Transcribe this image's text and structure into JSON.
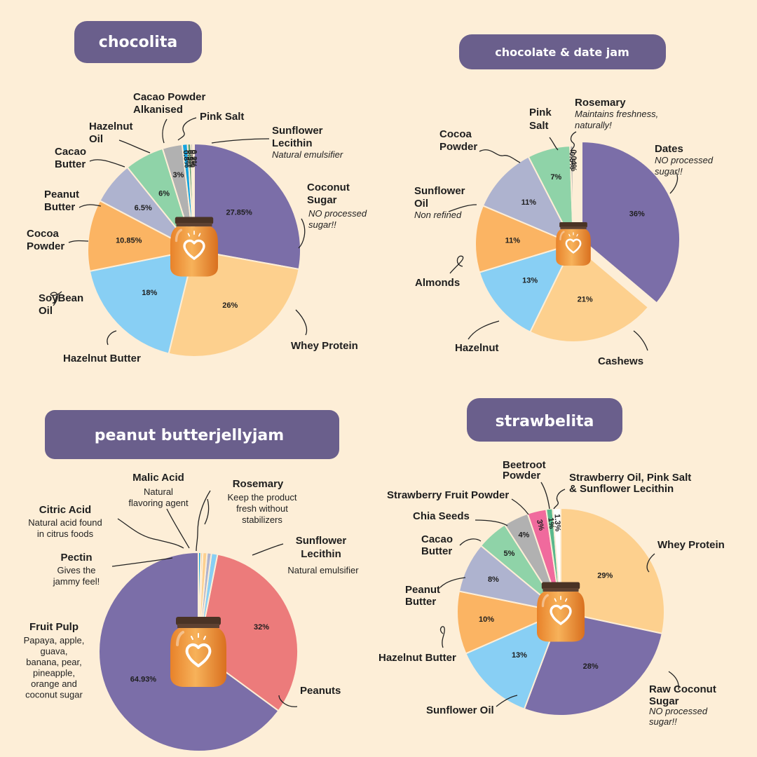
{
  "colors": {
    "purple": "#7b6ea8",
    "peach": "#fdd08e",
    "sky": "#88cff4",
    "orange": "#fbb463",
    "lavender": "#aeb3cf",
    "mint": "#8fd3a8",
    "grey": "#b1b1b1",
    "blue": "#14a4e0",
    "green": "#5e9e74",
    "white": "#ffffff",
    "coral": "#ec7b7b",
    "pink": "#f06a9d",
    "teal": "#59b98d"
  },
  "chart_data": [
    {
      "type": "pie",
      "title": "chocolita",
      "slices": [
        {
          "label": "Coconut Sugar",
          "note": "NO processed sugar!!",
          "value": 27.85,
          "pct_label": "27.85%",
          "color": "#7b6ea8"
        },
        {
          "label": "Whey Protein",
          "value": 26,
          "pct_label": "26%",
          "color": "#fdd08e"
        },
        {
          "label": "Hazelnut Butter",
          "value": 18,
          "pct_label": "18%",
          "color": "#88cff4"
        },
        {
          "label": "SoyBean Oil",
          "value": 10.85,
          "pct_label": "10.85%",
          "color": "#fbb463"
        },
        {
          "label": "Cocoa Powder",
          "value": 6.5,
          "pct_label": "6.5%",
          "color": "#aeb3cf"
        },
        {
          "label": "Peanut Butter",
          "value": 6,
          "pct_label": "6%",
          "color": "#8fd3a8"
        },
        {
          "label": "Cacao Butter",
          "value": 3,
          "pct_label": "3%",
          "color": "#b1b1b1"
        },
        {
          "label": "Hazelnut Oil",
          "value": 0.8,
          "pct_label": "0.8%",
          "color": "#14a4e0"
        },
        {
          "label": "Cacao Powder Alkanised",
          "value": 0.5,
          "pct_label": "0.5%",
          "color": "#5e9e74"
        },
        {
          "label": "Pink Salt",
          "value": 0.3,
          "pct_label": "0.3%",
          "color": "#b1b1b1"
        },
        {
          "label": "Sunflower Lecithin",
          "note": "Natural emulsifier",
          "value": 0.2,
          "pct_label": "0.2%",
          "color": "#ffffff"
        }
      ]
    },
    {
      "type": "pie",
      "title": "chocolate & date jam",
      "slices": [
        {
          "label": "Dates",
          "note": "NO processed sugar!!",
          "value": 36,
          "pct_label": "36%",
          "color": "#7b6ea8"
        },
        {
          "label": "Cashews",
          "value": 21,
          "pct_label": "21%",
          "color": "#fdd08e"
        },
        {
          "label": "Hazelnut",
          "value": 13,
          "pct_label": "13%",
          "color": "#88cff4"
        },
        {
          "label": "Almonds",
          "value": 11,
          "pct_label": "11%",
          "color": "#fbb463"
        },
        {
          "label": "Sunflower Oil",
          "note": "Non refined",
          "value": 11,
          "pct_label": "11%",
          "color": "#aeb3cf"
        },
        {
          "label": "Cocoa Powder",
          "value": 7,
          "pct_label": "7%",
          "color": "#8fd3a8"
        },
        {
          "label": "Pink Salt",
          "value": 0.5,
          "pct_label": "0.5%",
          "color": "#b1b1b1"
        },
        {
          "label": "Rosemary",
          "note": "Maintains freshness, naturally!",
          "value": 0.04,
          "pct_label": "0.04%",
          "color": "#14a4e0"
        }
      ]
    },
    {
      "type": "pie",
      "title": "peanut butterjellyjam",
      "slices": [
        {
          "label": "Peanuts",
          "value": 64.93,
          "pct_label": "64.93%",
          "color": "#7b6ea8"
        },
        {
          "label": "Fruit Pulp",
          "note": "Papaya, apple, guava, banana, pear, pineapple, orange and coconut sugar",
          "value": 32,
          "pct_label": "32%",
          "color": "#ec7b7b"
        },
        {
          "label": "Pectin",
          "note": "Gives the jammy feel!",
          "value": 1,
          "color": "#88cff4"
        },
        {
          "label": "Citric Acid",
          "note": "Natural acid found in citrus foods",
          "value": 0.7,
          "color": "#aeb3cf"
        },
        {
          "label": "Malic Acid",
          "note": "Natural flavoring agent",
          "value": 0.7,
          "color": "#fdd08e"
        },
        {
          "label": "Rosemary",
          "note": "Keep the product fresh without stabilizers",
          "value": 0.3,
          "color": "#fbb463"
        },
        {
          "label": "Sunflower Lecithin",
          "note": "Natural emulsifier",
          "value": 0.4,
          "color": "#14a4e0"
        }
      ]
    },
    {
      "type": "pie",
      "title": "strawbelita",
      "slices": [
        {
          "label": "Whey Protein",
          "value": 29,
          "pct_label": "29%",
          "color": "#fdd08e"
        },
        {
          "label": "Raw Coconut Sugar",
          "note": "NO processed sugar!!",
          "value": 28,
          "pct_label": "28%",
          "color": "#7b6ea8"
        },
        {
          "label": "Sunflower Oil",
          "value": 13,
          "pct_label": "13%",
          "color": "#88cff4"
        },
        {
          "label": "Hazelnut Butter",
          "value": 10,
          "pct_label": "10%",
          "color": "#fbb463"
        },
        {
          "label": "Peanut Butter",
          "value": 8,
          "pct_label": "8%",
          "color": "#aeb3cf"
        },
        {
          "label": "Cacao Butter",
          "value": 5,
          "pct_label": "5%",
          "color": "#8fd3a8"
        },
        {
          "label": "Chia Seeds",
          "value": 4,
          "pct_label": "4%",
          "color": "#b1b1b1"
        },
        {
          "label": "Strawberry Fruit Powder",
          "value": 3,
          "pct_label": "3%",
          "color": "#f06a9d"
        },
        {
          "label": "Beetroot Powder",
          "value": 1,
          "pct_label": "1%",
          "color": "#59b98d"
        },
        {
          "label": "Strawberry Oil, Pink Salt & Sunflower Lecithin",
          "value": 1.3,
          "pct_label": "1.3%",
          "color": "#ffffff"
        }
      ]
    }
  ]
}
